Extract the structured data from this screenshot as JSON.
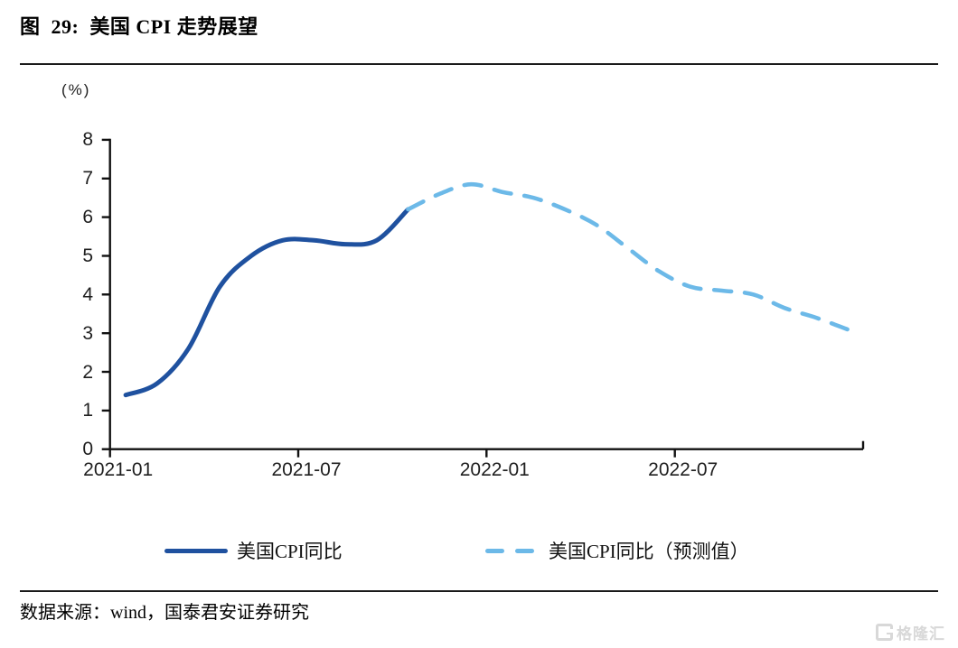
{
  "figure": {
    "title": "图  29:  美国 CPI 走势展望",
    "source_note": "数据来源：wind，国泰君安证券研究",
    "watermark": "格隆汇"
  },
  "chart_data": {
    "type": "line",
    "title": "美国 CPI 走势展望",
    "unit_label": "(%)",
    "xlabel": "",
    "ylabel": "(%)",
    "ylim": [
      0,
      8
    ],
    "grid": false,
    "legend_position": "bottom",
    "axis_color": "#111111",
    "y_ticks": [
      8,
      7,
      6,
      5,
      4,
      3,
      2,
      1,
      0
    ],
    "x_tick_labels": [
      "2021-01",
      "2021-07",
      "2022-01",
      "2022-07"
    ],
    "series": [
      {
        "name": "美国CPI同比",
        "style": "solid",
        "color": "#1F519F",
        "x": [
          "2021-01",
          "2021-02",
          "2021-03",
          "2021-04",
          "2021-05",
          "2021-06",
          "2021-07",
          "2021-08",
          "2021-09",
          "2021-10"
        ],
        "values": [
          1.4,
          1.7,
          2.6,
          4.2,
          5.0,
          5.4,
          5.4,
          5.3,
          5.4,
          6.2
        ]
      },
      {
        "name": "美国CPI同比（预测值）",
        "style": "dashed",
        "color": "#6CB9E8",
        "x": [
          "2021-10",
          "2021-11",
          "2021-12",
          "2022-01",
          "2022-02",
          "2022-03",
          "2022-04",
          "2022-05",
          "2022-06",
          "2022-07",
          "2022-08",
          "2022-09",
          "2022-10",
          "2022-11",
          "2022-12"
        ],
        "values": [
          6.2,
          6.6,
          6.85,
          6.65,
          6.5,
          6.2,
          5.8,
          5.2,
          4.6,
          4.2,
          4.1,
          4.0,
          3.65,
          3.4,
          3.1
        ]
      }
    ]
  }
}
